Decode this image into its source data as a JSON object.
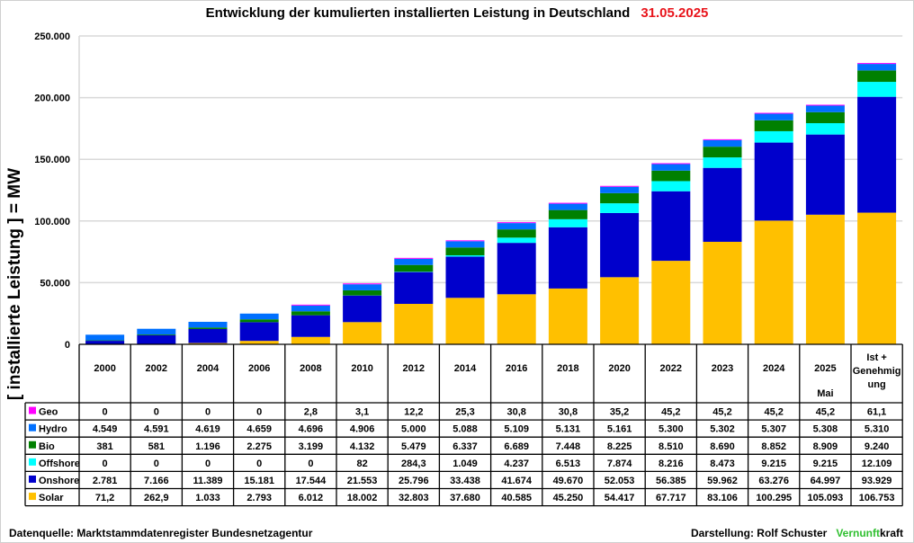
{
  "chart_data": {
    "type": "bar",
    "stacked": true,
    "title": "Entwicklung der kumulierten installierten Leistung in Deutschland",
    "title_date": "31.05.2025",
    "ylabel": "[ installierte Leistung ] = MW",
    "xlabel": "",
    "ylim": [
      0,
      250000
    ],
    "yticks": [
      0,
      50000,
      100000,
      150000,
      200000,
      250000
    ],
    "ytick_labels": [
      "0",
      "50.000",
      "100.000",
      "150.000",
      "200.000",
      "250.000"
    ],
    "grid": true,
    "legend_placement": "table-left",
    "categories": [
      "2000",
      "2002",
      "2004",
      "2006",
      "2008",
      "2010",
      "2012",
      "2014",
      "2016",
      "2018",
      "2020",
      "2022",
      "2023",
      "2024",
      "2025",
      "Ist + Genehmig ung"
    ],
    "category_sublabels": [
      "",
      "",
      "",
      "",
      "",
      "",
      "",
      "",
      "",
      "",
      "",
      "",
      "",
      "",
      "Mai",
      ""
    ],
    "series": [
      {
        "name": "Solar",
        "color": "#ffc000",
        "values": [
          71.2,
          262.9,
          1033,
          2793,
          6012,
          18002,
          32803,
          37680,
          40585,
          45250,
          54417,
          67717,
          83106,
          100295,
          105093,
          106753
        ],
        "labels": [
          "71,2",
          "262,9",
          "1.033",
          "2.793",
          "6.012",
          "18.002",
          "32.803",
          "37.680",
          "40.585",
          "45.250",
          "54.417",
          "67.717",
          "83.106",
          "100.295",
          "105.093",
          "106.753"
        ]
      },
      {
        "name": "Onshore",
        "color": "#0000cc",
        "values": [
          2781,
          7166,
          11389,
          15181,
          17544,
          21553,
          25796,
          33438,
          41674,
          49670,
          52053,
          56385,
          59962,
          63276,
          64997,
          93929
        ],
        "labels": [
          "2.781",
          "7.166",
          "11.389",
          "15.181",
          "17.544",
          "21.553",
          "25.796",
          "33.438",
          "41.674",
          "49.670",
          "52.053",
          "56.385",
          "59.962",
          "63.276",
          "64.997",
          "93.929"
        ]
      },
      {
        "name": "Offshore",
        "color": "#00ffff",
        "values": [
          0,
          0,
          0,
          0,
          0,
          82,
          284.3,
          1049,
          4237,
          6513,
          7874,
          8216,
          8473,
          9215,
          9215,
          12109
        ],
        "labels": [
          "0",
          "0",
          "0",
          "0",
          "0",
          "82",
          "284,3",
          "1.049",
          "4.237",
          "6.513",
          "7.874",
          "8.216",
          "8.473",
          "9.215",
          "9.215",
          "12.109"
        ]
      },
      {
        "name": "Bio",
        "color": "#008000",
        "values": [
          381,
          581,
          1196,
          2275,
          3199,
          4132,
          5479,
          6337,
          6689,
          7448,
          8225,
          8510,
          8690,
          8852,
          8909,
          9240
        ],
        "labels": [
          "381",
          "581",
          "1.196",
          "2.275",
          "3.199",
          "4.132",
          "5.479",
          "6.337",
          "6.689",
          "7.448",
          "8.225",
          "8.510",
          "8.690",
          "8.852",
          "8.909",
          "9.240"
        ]
      },
      {
        "name": "Hydro",
        "color": "#0070ff",
        "values": [
          4549,
          4591,
          4619,
          4659,
          4696,
          4906,
          5000,
          5088,
          5109,
          5131,
          5161,
          5300,
          5302,
          5307,
          5308,
          5310
        ],
        "labels": [
          "4.549",
          "4.591",
          "4.619",
          "4.659",
          "4.696",
          "4.906",
          "5.000",
          "5.088",
          "5.109",
          "5.131",
          "5.161",
          "5.300",
          "5.302",
          "5.307",
          "5.308",
          "5.310"
        ]
      },
      {
        "name": "Geo",
        "color": "#ff00ff",
        "values": [
          0,
          0,
          0,
          0,
          2.8,
          3.1,
          12.2,
          25.3,
          30.8,
          30.8,
          35.2,
          45.2,
          45.2,
          45.2,
          45.2,
          61.1
        ],
        "labels": [
          "0",
          "0",
          "0",
          "0",
          "2,8",
          "3,1",
          "12,2",
          "25,3",
          "30,8",
          "30,8",
          "35,2",
          "45,2",
          "45,2",
          "45,2",
          "45,2",
          "61,1"
        ]
      }
    ],
    "table_row_order": [
      "Geo",
      "Hydro",
      "Bio",
      "Offshore",
      "Onshore",
      "Solar"
    ]
  },
  "footer": {
    "source": "Datenquelle: Marktstammdatenregister Bundesnetzagentur",
    "credit": "Darstellung:  Rolf Schuster",
    "brand_part1": "Vernunft",
    "brand_part2": "kraft"
  }
}
